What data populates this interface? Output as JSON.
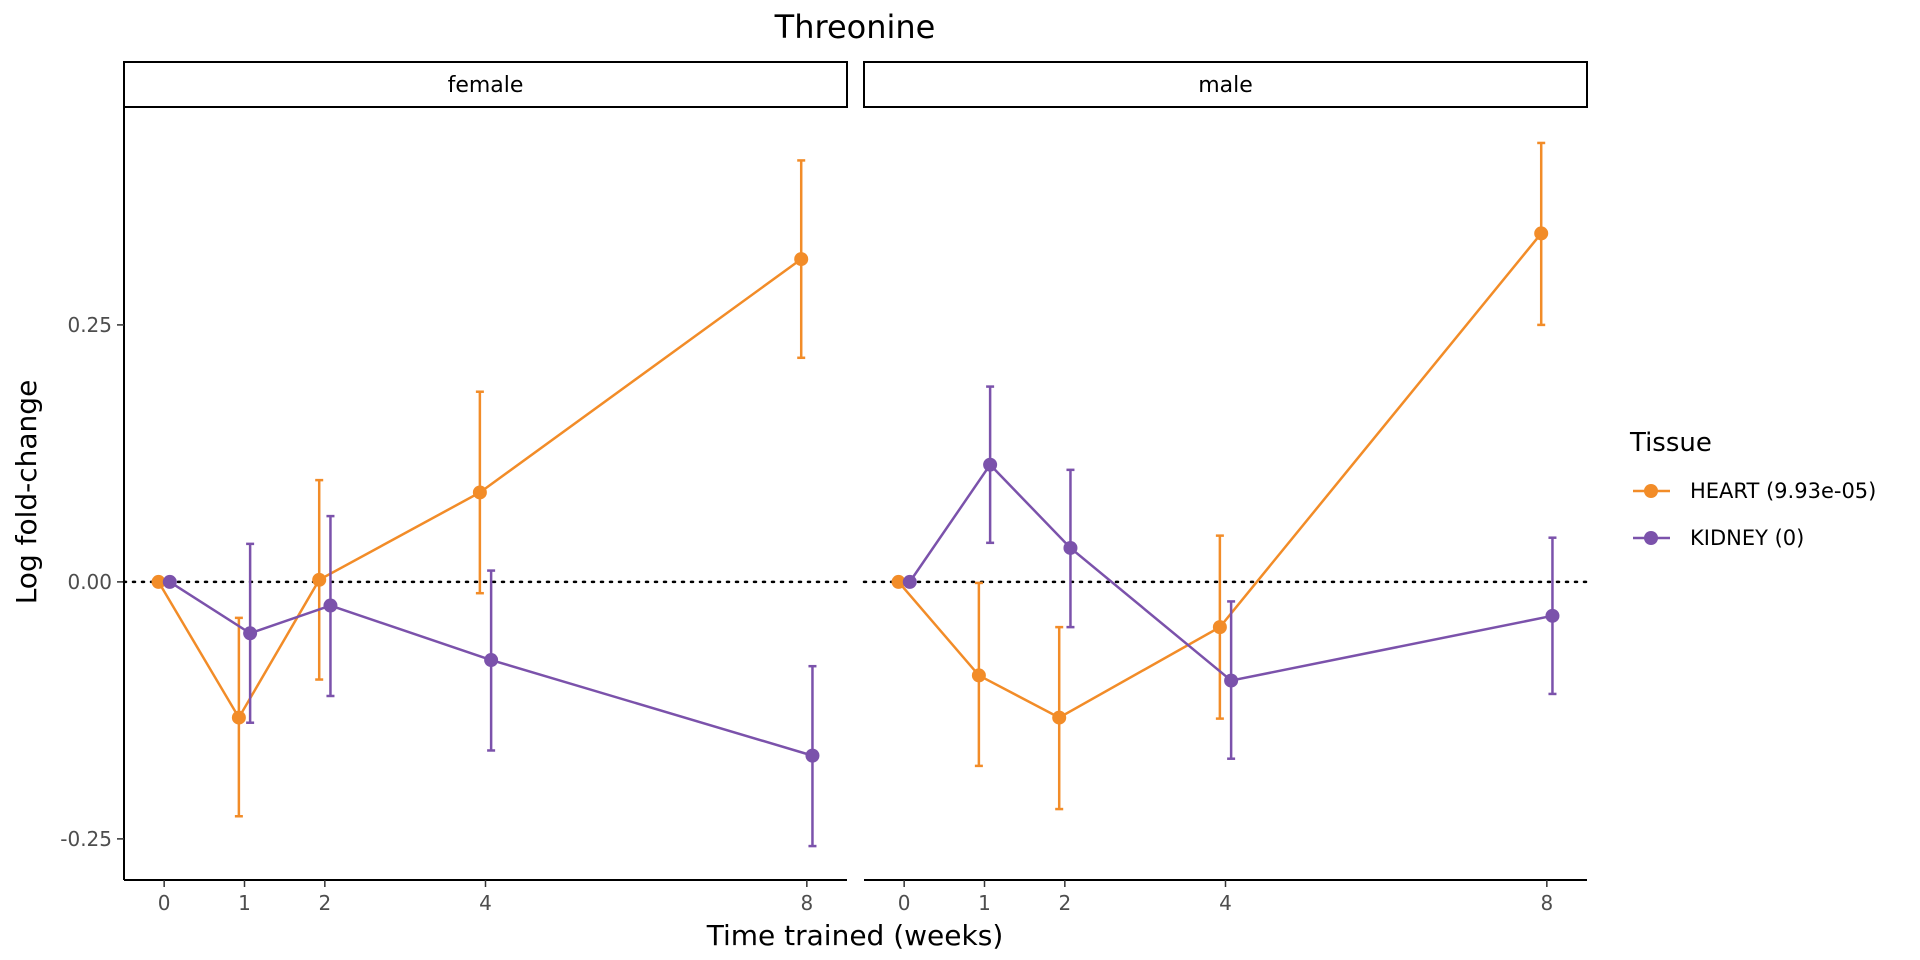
{
  "chart_data": {
    "type": "line",
    "title": "Threonine",
    "xlabel": "Time trained (weeks)",
    "ylabel": "Log fold-change",
    "x_ticks": [
      0,
      1,
      2,
      4,
      8
    ],
    "y_ticks": [
      {
        "value": 0.25,
        "label": "0.25"
      },
      {
        "value": 0.0,
        "label": "0.00"
      },
      {
        "value": -0.25,
        "label": "-0.25"
      }
    ],
    "ylim": [
      -0.29,
      0.461
    ],
    "xlim": [
      -0.5,
      8.5
    ],
    "reference_line": {
      "y": 0,
      "style": "dotted"
    },
    "legend": {
      "title": "Tissue",
      "position": "right",
      "entries": [
        {
          "label": "HEART (9.93e-05)",
          "color": "#F28C28"
        },
        {
          "label": "KIDNEY (0)",
          "color": "#7B52AB"
        }
      ]
    },
    "facets": [
      {
        "label": "female",
        "series": [
          {
            "name": "HEART (9.93e-05)",
            "color": "#F28C28",
            "dodge": -0.07,
            "points": [
              {
                "x": 0,
                "y": 0.0,
                "lo": null,
                "hi": null
              },
              {
                "x": 1,
                "y": -0.132,
                "lo": -0.228,
                "hi": -0.035
              },
              {
                "x": 2,
                "y": 0.002,
                "lo": -0.095,
                "hi": 0.099
              },
              {
                "x": 4,
                "y": 0.087,
                "lo": -0.011,
                "hi": 0.185
              },
              {
                "x": 8,
                "y": 0.314,
                "lo": 0.218,
                "hi": 0.41
              }
            ]
          },
          {
            "name": "KIDNEY (0)",
            "color": "#7B52AB",
            "dodge": 0.07,
            "points": [
              {
                "x": 0,
                "y": 0.0,
                "lo": null,
                "hi": null
              },
              {
                "x": 1,
                "y": -0.05,
                "lo": -0.137,
                "hi": 0.037
              },
              {
                "x": 2,
                "y": -0.023,
                "lo": -0.111,
                "hi": 0.064
              },
              {
                "x": 4,
                "y": -0.076,
                "lo": -0.164,
                "hi": 0.011
              },
              {
                "x": 8,
                "y": -0.169,
                "lo": -0.257,
                "hi": -0.082
              }
            ]
          }
        ]
      },
      {
        "label": "male",
        "series": [
          {
            "name": "HEART (9.93e-05)",
            "color": "#F28C28",
            "dodge": -0.07,
            "points": [
              {
                "x": 0,
                "y": 0.0,
                "lo": null,
                "hi": null
              },
              {
                "x": 1,
                "y": -0.091,
                "lo": -0.179,
                "hi": -0.001
              },
              {
                "x": 2,
                "y": -0.132,
                "lo": -0.221,
                "hi": -0.044
              },
              {
                "x": 4,
                "y": -0.044,
                "lo": -0.133,
                "hi": 0.045
              },
              {
                "x": 8,
                "y": 0.339,
                "lo": 0.25,
                "hi": 0.427
              }
            ]
          },
          {
            "name": "KIDNEY (0)",
            "color": "#7B52AB",
            "dodge": 0.07,
            "points": [
              {
                "x": 0,
                "y": 0.0,
                "lo": null,
                "hi": null
              },
              {
                "x": 1,
                "y": 0.114,
                "lo": 0.038,
                "hi": 0.19
              },
              {
                "x": 2,
                "y": 0.033,
                "lo": -0.044,
                "hi": 0.109
              },
              {
                "x": 4,
                "y": -0.096,
                "lo": -0.172,
                "hi": -0.019
              },
              {
                "x": 8,
                "y": -0.033,
                "lo": -0.109,
                "hi": 0.043
              }
            ]
          }
        ]
      }
    ]
  }
}
